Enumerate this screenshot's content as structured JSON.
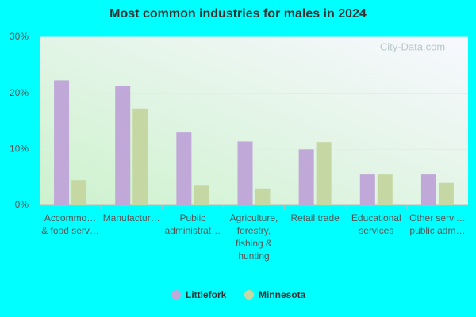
{
  "chart_data": {
    "type": "bar",
    "title": "Most common industries for males in 2024",
    "watermark": "City-Data.com",
    "categories": [
      "Accommo…\n& food serv…",
      "Manufactur…",
      "Public\nadministrat…",
      "Agriculture,\nforestry,\nfishing &\nhunting",
      "Retail trade",
      "Educational\nservices",
      "Other servi…\npublic adm…"
    ],
    "series": [
      {
        "name": "Littlefork",
        "color": "#c0a8d8",
        "values": [
          22.3,
          21.3,
          13.0,
          11.4,
          10.0,
          5.5,
          5.5
        ]
      },
      {
        "name": "Minnesota",
        "color": "#c5d8a4",
        "values": [
          4.5,
          17.3,
          3.5,
          3.0,
          11.3,
          5.5,
          4.0
        ]
      }
    ],
    "ylim": [
      0,
      30
    ],
    "yticks": [
      {
        "value": 0,
        "label": "0%"
      },
      {
        "value": 10,
        "label": "10%"
      },
      {
        "value": 20,
        "label": "20%"
      },
      {
        "value": 30,
        "label": "30%"
      }
    ],
    "grid": true,
    "legend": "bottom"
  }
}
